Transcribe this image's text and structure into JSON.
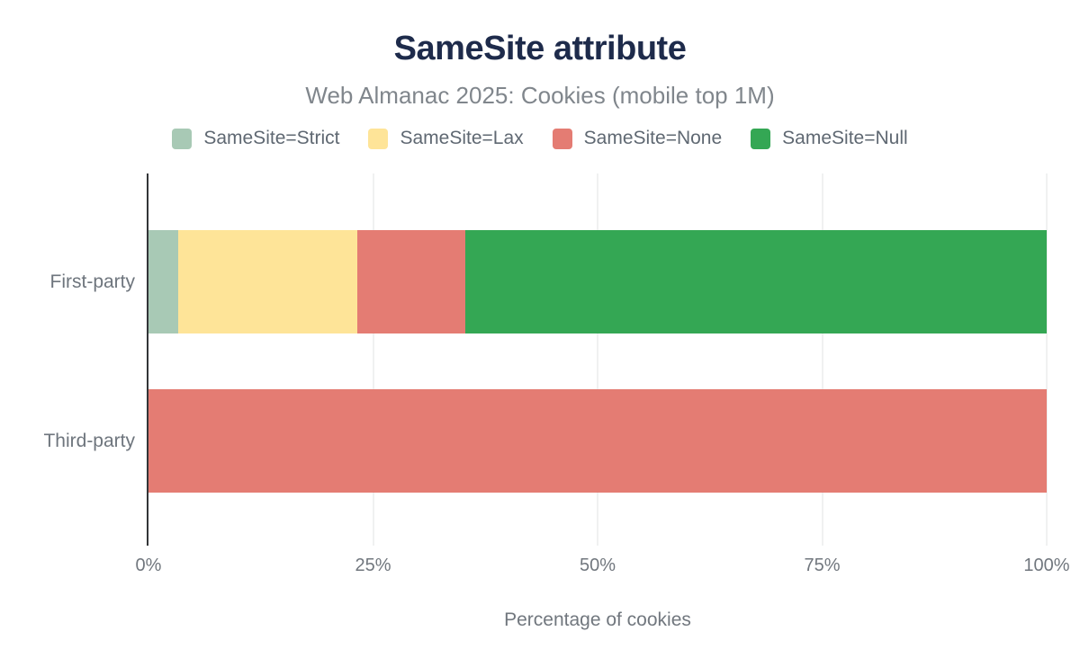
{
  "chart_data": {
    "type": "bar",
    "orientation": "horizontal",
    "stacked": true,
    "title": "SameSite attribute",
    "subtitle": "Web Almanac 2025: Cookies (mobile top 1M)",
    "xlabel": "Percentage of cookies",
    "categories": [
      "First-party",
      "Third-party"
    ],
    "series": [
      {
        "name": "SameSite=Strict",
        "color": "#a8c9b5",
        "values": [
          3.3,
          0
        ]
      },
      {
        "name": "SameSite=Lax",
        "color": "#fee498",
        "values": [
          19.9,
          0
        ]
      },
      {
        "name": "SameSite=None",
        "color": "#e47c73",
        "values": [
          12.1,
          100
        ]
      },
      {
        "name": "SameSite=Null",
        "color": "#34a754",
        "values": [
          64.7,
          0
        ]
      }
    ],
    "xlim": [
      0,
      100
    ],
    "x_ticks": [
      "0%",
      "25%",
      "50%",
      "75%",
      "100%"
    ],
    "x_tick_values": [
      0,
      25,
      50,
      75,
      100
    ],
    "grid": true,
    "legend_position": "top"
  },
  "colors": {
    "background": "#ffffff",
    "title": "#1e2b4b",
    "subtitle": "#80868c",
    "legend_text": "#5f6872",
    "category_label": "#6e757d",
    "tick_label": "#71777e",
    "axis_label": "#71777e",
    "axis_line": "#333538",
    "gridline": "#f0f1f1"
  }
}
